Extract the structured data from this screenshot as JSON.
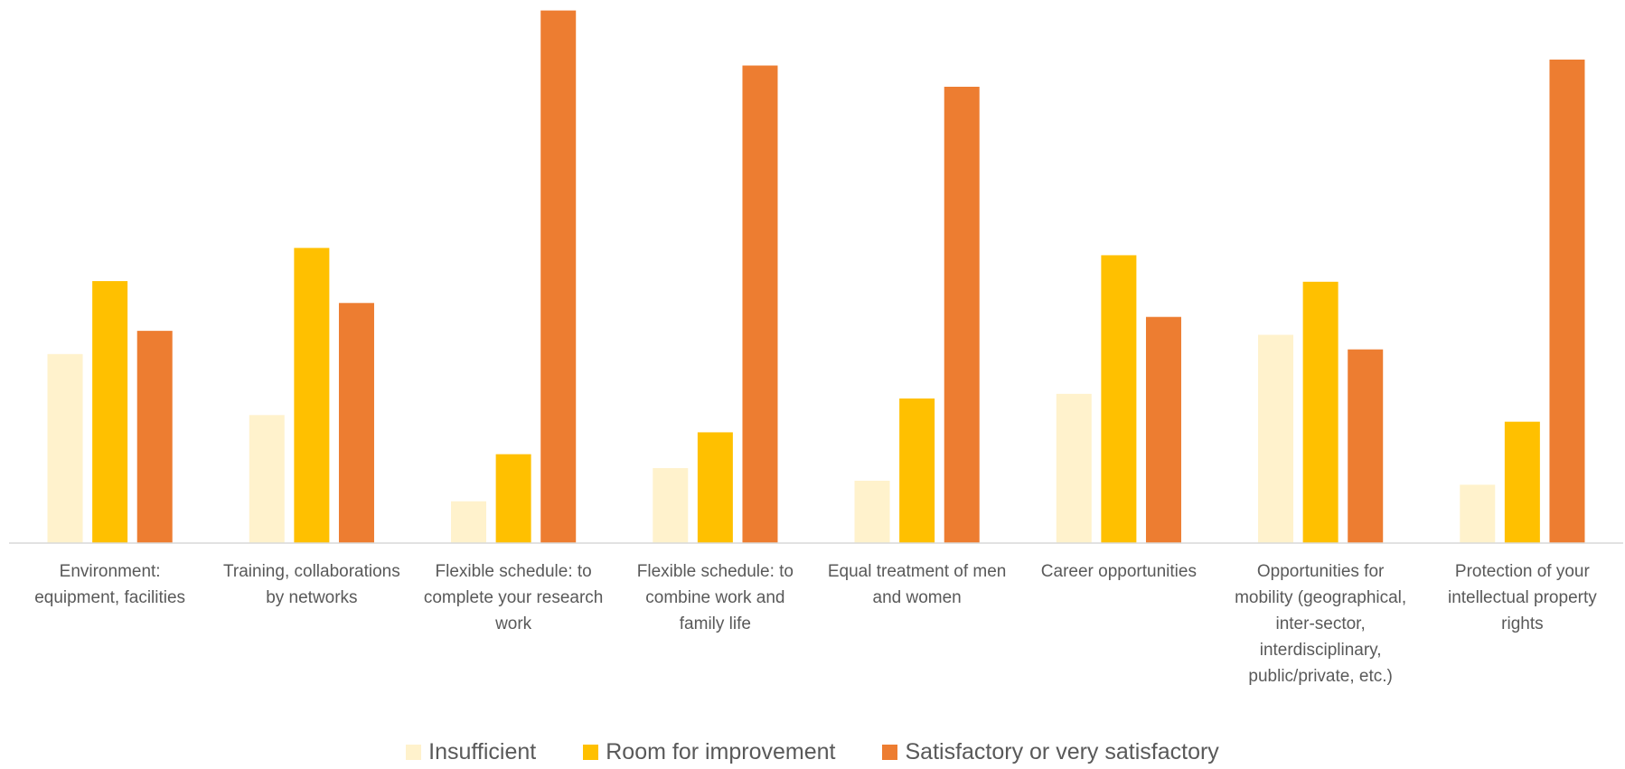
{
  "chart_data": {
    "type": "bar",
    "categories": [
      "Environment: equipment, facilities",
      "Training, collaborations by networks",
      "Flexible schedule: to complete your research work",
      "Flexible schedule: to combine work and family life",
      "Equal treatment of men and women",
      "Career opportunities",
      "Opportunities for mobility (geographical, inter-sector, interdisciplinary, public/private, etc.)",
      "Protection of your intellectual property rights"
    ],
    "series": [
      {
        "name": "Insufficient",
        "color": "#FFF2CC",
        "values": [
          28.5,
          19.3,
          6.3,
          11.3,
          9.4,
          22.5,
          31.4,
          8.8
        ]
      },
      {
        "name": "Room for improvement",
        "color": "#FFC000",
        "values": [
          39.5,
          44.5,
          13.4,
          16.7,
          21.8,
          43.4,
          39.4,
          18.3
        ]
      },
      {
        "name": "Satisfactory or very satisfactory",
        "color": "#ED7D31",
        "values": [
          32,
          36.2,
          80.3,
          72,
          68.8,
          34.1,
          29.2,
          72.9
        ]
      }
    ],
    "legend": "bottom"
  }
}
